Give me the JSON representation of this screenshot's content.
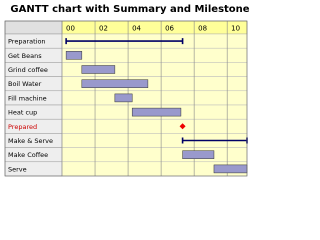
{
  "chart_data": {
    "type": "gantt",
    "title": "GANTT chart with Summary and Milestone",
    "xlim": [
      0,
      11.2
    ],
    "xticks": [
      {
        "value": 0,
        "label": "00"
      },
      {
        "value": 2,
        "label": "02"
      },
      {
        "value": 4,
        "label": "04"
      },
      {
        "value": 6,
        "label": "06"
      },
      {
        "value": 8,
        "label": "08"
      },
      {
        "value": 10,
        "label": "10"
      }
    ],
    "grid": true,
    "bar_color": "#9999cc",
    "summary_color": "#000066",
    "milestone_color": "#ee0000",
    "tasks": [
      {
        "name": "Preparation",
        "kind": "summary",
        "start": 0.25,
        "end": 7.3
      },
      {
        "name": "Get Beans",
        "kind": "task",
        "start": 0.25,
        "end": 1.2
      },
      {
        "name": "Grind coffee",
        "kind": "task",
        "start": 1.2,
        "end": 3.2
      },
      {
        "name": "Boil Water",
        "kind": "task",
        "start": 1.2,
        "end": 5.2
      },
      {
        "name": "Fill machine",
        "kind": "task",
        "start": 3.2,
        "end": 4.25
      },
      {
        "name": "Heat cup",
        "kind": "task",
        "start": 4.25,
        "end": 7.2
      },
      {
        "name": "Prepared",
        "kind": "milestone",
        "start": 7.3
      },
      {
        "name": "Make & Serve",
        "kind": "summary",
        "start": 7.3,
        "end": 11.2
      },
      {
        "name": "Make Coffee",
        "kind": "task",
        "start": 7.3,
        "end": 9.2
      },
      {
        "name": "Serve",
        "kind": "task",
        "start": 9.2,
        "end": 11.2
      }
    ]
  }
}
